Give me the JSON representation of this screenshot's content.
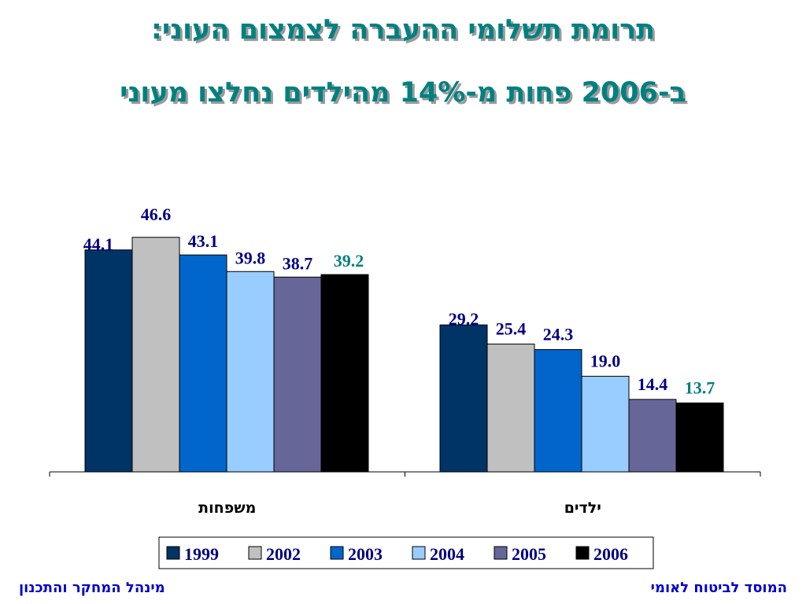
{
  "slide": {
    "title_line1": "תרומת תשלומי ההעברה לצמצום העוני:",
    "title_line2": "ב-2006 פחות מ-14% מהילדים נחלצו מעוני",
    "footer_left": "מינהל המחקר והתכנון",
    "footer_right": "המוסד לביטוח לאומי"
  },
  "chart_data": {
    "type": "bar",
    "title": "",
    "xlabel": "",
    "ylabel": "",
    "categories": [
      "משפחות",
      "ילדים"
    ],
    "ylim": [
      0,
      50
    ],
    "grid": false,
    "legend_position": "bottom",
    "series": [
      {
        "name": "1999",
        "color": "#003366",
        "values": [
          44.1,
          29.2
        ],
        "labels": [
          "44.1",
          "29.2"
        ],
        "label_color": "#000080"
      },
      {
        "name": "2002",
        "color": "#c0c0c0",
        "values": [
          46.6,
          25.4
        ],
        "labels": [
          "46.6",
          "25.4"
        ],
        "label_color": "#000080"
      },
      {
        "name": "2003",
        "color": "#0066cc",
        "values": [
          43.1,
          24.3
        ],
        "labels": [
          "43.1",
          "24.3"
        ],
        "label_color": "#000080"
      },
      {
        "name": "2004",
        "color": "#99ccff",
        "values": [
          39.8,
          19.0
        ],
        "labels": [
          "39.8",
          "19.0"
        ],
        "label_color": "#000080"
      },
      {
        "name": "2005",
        "color": "#666699",
        "values": [
          38.7,
          14.4
        ],
        "labels": [
          "38.7",
          "14.4"
        ],
        "label_color": "#000080"
      },
      {
        "name": "2006",
        "color": "#000000",
        "values": [
          39.2,
          13.7
        ],
        "labels": [
          "39.2",
          "13.7"
        ],
        "label_color": "#008080"
      }
    ]
  }
}
